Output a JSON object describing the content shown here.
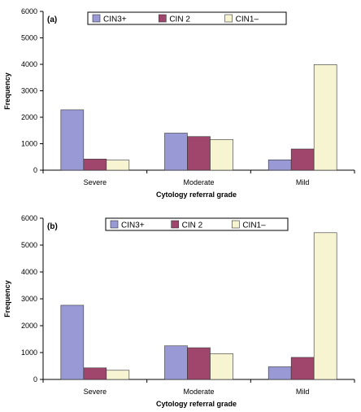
{
  "chart_data": [
    {
      "type": "bar",
      "panel_label": "(a)",
      "categories": [
        "Severe",
        "Moderate",
        "Mild"
      ],
      "series": [
        {
          "name": "CIN3+",
          "values": [
            2280,
            1400,
            390
          ]
        },
        {
          "name": "CIN 2",
          "values": [
            420,
            1270,
            800
          ]
        },
        {
          "name": "CIN1–",
          "values": [
            380,
            1160,
            3990
          ]
        }
      ],
      "colors": [
        "#9999d6",
        "#a0456b",
        "#f7f4d2"
      ],
      "xlabel": "Cytology referral grade",
      "ylabel": "Frequency",
      "ylim": [
        0,
        6000
      ],
      "yticks": [
        "0",
        "1000",
        "2000",
        "3000",
        "4000",
        "5000",
        "6000"
      ],
      "grid": false,
      "legend_position": "top"
    },
    {
      "type": "bar",
      "panel_label": "(b)",
      "categories": [
        "Severe",
        "Moderate",
        "Mild"
      ],
      "series": [
        {
          "name": "CIN3+",
          "values": [
            2760,
            1250,
            470
          ]
        },
        {
          "name": "CIN 2",
          "values": [
            430,
            1180,
            820
          ]
        },
        {
          "name": "CIN1–",
          "values": [
            340,
            960,
            5460
          ]
        }
      ],
      "colors": [
        "#9999d6",
        "#a0456b",
        "#f7f4d2"
      ],
      "xlabel": "Cytology referral grade",
      "ylabel": "Frequency",
      "ylim": [
        0,
        6000
      ],
      "yticks": [
        "0",
        "1000",
        "2000",
        "3000",
        "4000",
        "5000",
        "6000"
      ],
      "grid": false,
      "legend_position": "top"
    }
  ]
}
